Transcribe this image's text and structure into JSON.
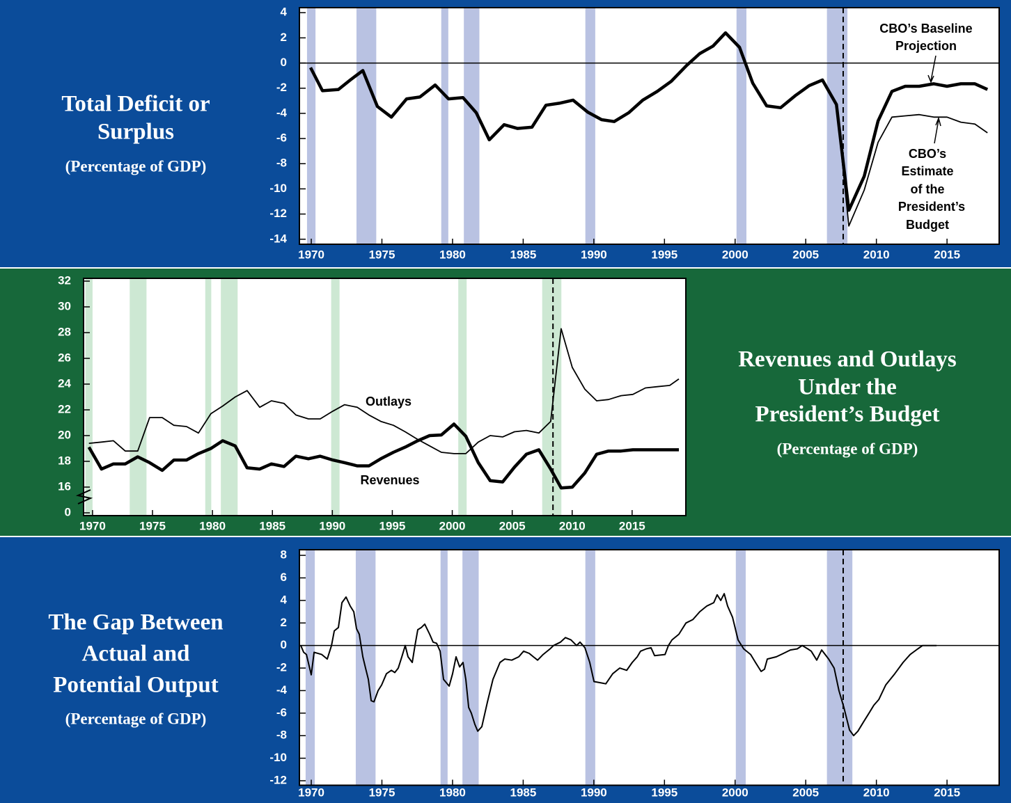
{
  "chart_data": [
    {
      "type": "line",
      "title": [
        "Total Deficit or",
        "Surplus"
      ],
      "subtitle": "(Percentage of GDP)",
      "annotations": [
        [
          "CBO’s Baseline",
          "Projection"
        ],
        [
          "CBO’s",
          "Estimate",
          "of the",
          "President’s",
          "Budget"
        ]
      ],
      "x": [
        1969.95,
        1970.79,
        1971.92,
        1972.76,
        1973.65,
        1974.68,
        1975.67,
        1976.75,
        1977.69,
        1978.77,
        1979.71,
        1980.74,
        1981.68,
        1982.6,
        1983.65,
        1984.59,
        1985.62,
        1986.61,
        1987.55,
        1988.53,
        1989.57,
        1990.55,
        1991.44,
        1992.47,
        1993.46,
        1994.49,
        1995.48,
        1996.56,
        1997.5,
        1998.44,
        1999.32,
        2000.31,
        2001.25,
        2002.23,
        2003.22,
        2004.25,
        2005.24,
        2006.18,
        2007.17,
        2008.05,
        2009.14,
        2010.12,
        2011.1,
        2012.04,
        2013.03,
        2014.06,
        2015.0,
        2015.98,
        2016.97,
        2017.86
      ],
      "series": [
        {
          "color": "#000000",
          "width": 4.5,
          "values": [
            -0.36,
            -2.2,
            -2.1,
            -1.35,
            -0.6,
            -3.45,
            -4.3,
            -2.85,
            -2.7,
            -1.75,
            -2.85,
            -2.75,
            -3.95,
            -6.1,
            -4.9,
            -5.2,
            -5.1,
            -3.35,
            -3.2,
            -2.95,
            -3.9,
            -4.5,
            -4.65,
            -3.95,
            -2.95,
            -2.25,
            -1.45,
            -0.2,
            0.75,
            1.35,
            2.4,
            1.25,
            -1.6,
            -3.4,
            -3.55,
            -2.6,
            -1.8,
            -1.35,
            -3.3,
            -11.7,
            -9.0,
            -4.6,
            -2.25,
            -1.85,
            -1.85,
            -1.65,
            -1.85,
            -1.65,
            -1.65,
            -2.1
          ]
        },
        {
          "color": "#000000",
          "width": 1.8,
          "values": [
            null,
            null,
            null,
            null,
            null,
            null,
            null,
            null,
            null,
            null,
            null,
            null,
            null,
            null,
            null,
            null,
            null,
            null,
            null,
            null,
            null,
            null,
            null,
            null,
            null,
            null,
            null,
            null,
            null,
            null,
            null,
            null,
            null,
            null,
            null,
            null,
            null,
            null,
            -3.3,
            -12.95,
            -10.1,
            -6.3,
            -4.3,
            -4.2,
            -4.1,
            -4.3,
            -4.3,
            -4.7,
            -4.85,
            -5.55
          ]
        }
      ],
      "xlim": [
        1969.16,
        2018.69
      ],
      "ylim": [
        -14.4,
        4.4
      ],
      "xticks": [
        1970,
        1975,
        1980,
        1985,
        1990,
        1995,
        2000,
        2005,
        2010,
        2015
      ],
      "yticks": [
        -14,
        -12,
        -10,
        -8,
        -6,
        -4,
        -2,
        0,
        2,
        4
      ],
      "recessions": [
        [
          1969.7,
          1970.3
        ],
        [
          1973.2,
          1974.6
        ],
        [
          1979.2,
          1979.7
        ],
        [
          1980.8,
          1981.9
        ],
        [
          1989.4,
          1990.1
        ],
        [
          2000.1,
          2000.8
        ],
        [
          2006.5,
          2007.95
        ]
      ],
      "vline": 2007.65,
      "zero_line": true,
      "recession_color": "#b9c2e2"
    },
    {
      "type": "line",
      "title": [
        "Revenues and Outlays",
        "Under the",
        "President’s Budget"
      ],
      "subtitle": "(Percentage of GDP)",
      "x": [
        1969.7,
        1970.75,
        1971.74,
        1972.73,
        1973.77,
        1974.76,
        1975.81,
        1976.79,
        1977.84,
        1978.83,
        1979.87,
        1980.86,
        1981.9,
        1982.89,
        1983.94,
        1984.92,
        1985.97,
        1986.96,
        1988.0,
        1988.99,
        1990.04,
        1991.02,
        1992.07,
        1993.05,
        1994.04,
        1995.09,
        1996.07,
        1997.12,
        1998.11,
        1999.09,
        2000.14,
        2001.13,
        2002.17,
        2003.16,
        2004.2,
        2005.19,
        2006.18,
        2007.22,
        2008.21,
        2009.08,
        2010.01,
        2011.06,
        2012.04,
        2013.03,
        2014.08,
        2015.06,
        2016.11,
        2017.1,
        2018.14,
        2018.9
      ],
      "series": [
        {
          "name": "Outlays",
          "color": "#000000",
          "width": 1.8,
          "values": [
            19.4,
            19.5,
            19.6,
            18.8,
            18.8,
            21.4,
            21.4,
            20.8,
            20.7,
            20.2,
            21.7,
            22.3,
            23.0,
            23.5,
            22.2,
            22.7,
            22.5,
            21.6,
            21.3,
            21.3,
            21.9,
            22.4,
            22.2,
            21.6,
            21.1,
            20.8,
            20.3,
            19.7,
            19.2,
            18.7,
            18.6,
            18.6,
            19.5,
            20.0,
            19.9,
            20.3,
            20.4,
            20.2,
            21.1,
            28.3,
            25.3,
            23.6,
            22.7,
            22.8,
            23.1,
            23.2,
            23.7,
            23.8,
            23.9,
            24.4
          ]
        },
        {
          "name": "Revenues",
          "color": "#000000",
          "width": 4.5,
          "values": [
            19.1,
            17.4,
            17.8,
            17.8,
            18.35,
            17.9,
            17.3,
            18.1,
            18.1,
            18.6,
            19.0,
            19.6,
            19.2,
            17.5,
            17.4,
            17.8,
            17.6,
            18.4,
            18.2,
            18.4,
            18.1,
            17.9,
            17.65,
            17.65,
            18.2,
            18.7,
            19.1,
            19.6,
            20.0,
            20.05,
            20.9,
            19.95,
            17.9,
            16.5,
            16.4,
            17.55,
            18.55,
            18.9,
            17.4,
            15.5,
            15.95,
            17.1,
            18.55,
            18.8,
            18.8,
            18.9,
            18.9,
            18.9,
            18.9,
            18.9
          ]
        }
      ],
      "xlim": [
        1969.25,
        2019.48
      ],
      "ylim": [
        0,
        32
      ],
      "axis_break": true,
      "xticks": [
        1970,
        1975,
        1980,
        1985,
        1990,
        1995,
        2000,
        2005,
        2010,
        2015
      ],
      "yticks": [
        0,
        16,
        18,
        20,
        22,
        24,
        26,
        28,
        30,
        32
      ],
      "recessions": [
        [
          1969.4,
          1970.0
        ],
        [
          1973.1,
          1974.5
        ],
        [
          1979.4,
          1979.9
        ],
        [
          1980.7,
          1982.1
        ],
        [
          1989.9,
          1990.6
        ],
        [
          2000.5,
          2001.2
        ],
        [
          2007.5,
          2009.1
        ]
      ],
      "vline": 2008.4,
      "zero_line": false,
      "recession_color": "#cde8d3"
    },
    {
      "type": "line",
      "title": [
        "The Gap Between",
        "Actual and",
        "Potential Output"
      ],
      "subtitle": "(Percentage of GDP)",
      "x": [
        1969.26,
        1969.46,
        1969.66,
        1970.0,
        1970.2,
        1970.74,
        1971.13,
        1971.43,
        1971.63,
        1971.92,
        1972.17,
        1972.46,
        1972.76,
        1973.01,
        1973.2,
        1973.4,
        1973.65,
        1973.84,
        1974.04,
        1974.24,
        1974.44,
        1974.73,
        1974.98,
        1975.32,
        1975.67,
        1975.91,
        1976.16,
        1976.41,
        1976.65,
        1976.85,
        1977.15,
        1977.34,
        1977.54,
        1977.79,
        1978.03,
        1978.38,
        1978.62,
        1978.87,
        1979.12,
        1979.36,
        1979.76,
        1980.0,
        1980.25,
        1980.5,
        1980.74,
        1980.94,
        1981.14,
        1981.33,
        1981.58,
        1981.78,
        1982.07,
        1982.47,
        1982.86,
        1983.36,
        1983.7,
        1984.19,
        1984.69,
        1985.03,
        1985.43,
        1985.72,
        1986.02,
        1986.41,
        1986.9,
        1987.15,
        1987.64,
        1987.99,
        1988.38,
        1988.78,
        1989.02,
        1989.37,
        1989.71,
        1990.01,
        1990.45,
        1990.85,
        1991.34,
        1991.83,
        1992.33,
        1992.72,
        1993.07,
        1993.31,
        1993.71,
        1994.05,
        1994.3,
        1995.04,
        1995.28,
        1995.53,
        1996.02,
        1996.52,
        1997.01,
        1997.5,
        1997.99,
        1998.49,
        1998.73,
        1998.98,
        1999.23,
        1999.47,
        1999.82,
        2000.21,
        2000.61,
        2001.1,
        2001.44,
        2001.84,
        2002.08,
        2002.28,
        2002.92,
        2003.42,
        2003.91,
        2004.4,
        2004.75,
        2005.14,
        2005.39,
        2005.78,
        2006.13,
        2006.62,
        2007.01,
        2007.35,
        2007.7,
        2008.1,
        2008.39,
        2008.69,
        2009.08,
        2009.48,
        2009.82,
        2010.17,
        2010.66,
        2011.3,
        2011.89,
        2012.39,
        2012.93,
        2013.27,
        2014.26
      ],
      "series": [
        {
          "color": "#000000",
          "width": 2,
          "values": [
            0,
            -0.6,
            -0.8,
            -2.6,
            -0.6,
            -0.8,
            -1.2,
            0,
            1.3,
            1.6,
            3.8,
            4.3,
            3.5,
            3.0,
            1.5,
            1.0,
            -1.0,
            -2.0,
            -3.0,
            -4.9,
            -5.0,
            -4.0,
            -3.5,
            -2.5,
            -2.2,
            -2.4,
            -2.0,
            -1.0,
            0,
            -1.0,
            -1.5,
            0,
            1.4,
            1.6,
            1.9,
            1.0,
            0.3,
            0.2,
            -0.5,
            -3.0,
            -3.6,
            -2.5,
            -1.0,
            -1.9,
            -1.5,
            -3.0,
            -5.5,
            -6.0,
            -7.0,
            -7.6,
            -7.2,
            -5.0,
            -3.0,
            -1.5,
            -1.2,
            -1.3,
            -1.0,
            -0.5,
            -0.7,
            -1.0,
            -1.3,
            -0.8,
            -0.3,
            0,
            0.3,
            0.7,
            0.5,
            0,
            0.3,
            -0.2,
            -1.5,
            -3.2,
            -3.3,
            -3.4,
            -2.5,
            -2.0,
            -2.2,
            -1.5,
            -1.0,
            -0.5,
            -0.3,
            -0.2,
            -0.9,
            -0.8,
            0,
            0.5,
            1.0,
            2.0,
            2.3,
            3.0,
            3.5,
            3.8,
            4.5,
            4.0,
            4.6,
            3.5,
            2.5,
            0.5,
            -0.3,
            -0.8,
            -1.5,
            -2.3,
            -2.1,
            -1.2,
            -1.0,
            -0.7,
            -0.4,
            -0.3,
            0,
            -0.3,
            -0.5,
            -1.3,
            -0.4,
            -1.2,
            -2.0,
            -4.0,
            -5.5,
            -7.5,
            -8.0,
            -7.6,
            -6.8,
            -6.0,
            -5.3,
            -4.8,
            -3.5,
            -2.5,
            -1.5,
            -0.8,
            -0.3,
            0,
            0
          ]
        }
      ],
      "xlim": [
        1969.16,
        2018.69
      ],
      "ylim": [
        -12.4,
        8.5
      ],
      "xticks": [
        1970,
        1975,
        1980,
        1985,
        1990,
        1995,
        2000,
        2005,
        2010,
        2015
      ],
      "yticks": [
        -12,
        -10,
        -8,
        -6,
        -4,
        -2,
        0,
        2,
        4,
        6,
        8
      ],
      "recessions": [
        [
          1969.6,
          1970.25
        ],
        [
          1973.15,
          1974.55
        ],
        [
          1979.15,
          1979.65
        ],
        [
          1980.7,
          1981.85
        ],
        [
          1989.4,
          1990.1
        ],
        [
          2000.05,
          2000.75
        ],
        [
          2006.5,
          2008.3
        ]
      ],
      "vline": 2007.65,
      "zero_line": true,
      "recession_color": "#b9c2e2"
    }
  ]
}
